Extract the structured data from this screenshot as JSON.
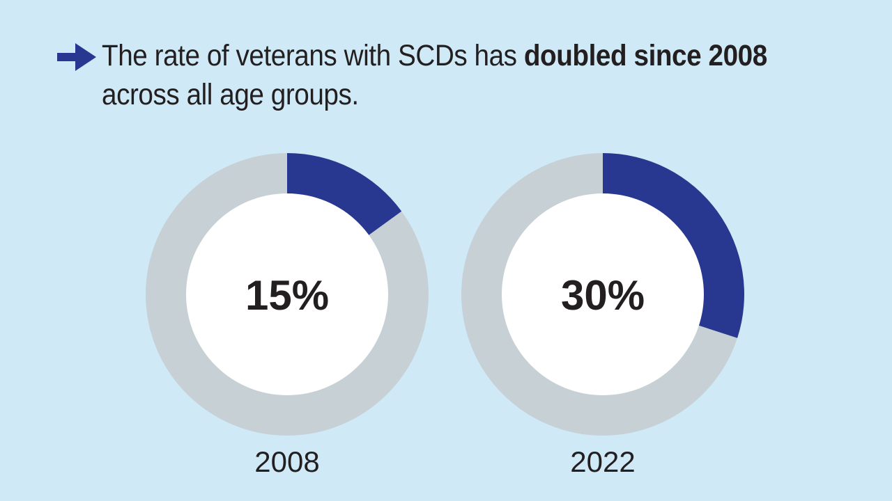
{
  "headline": {
    "text_before": "The rate of veterans with SCDs has ",
    "text_bold": "doubled since 2008",
    "text_after": " across all age groups."
  },
  "colors": {
    "background": "#cfeaf6",
    "filled": "#283891",
    "remainder": "#c7d0d5",
    "center": "#ffffff",
    "text": "#231f20"
  },
  "icons": [
    "arrow-right-icon"
  ],
  "chart_data": [
    {
      "type": "pie",
      "variant": "donut",
      "category": "2008",
      "value": 15,
      "unit": "%",
      "center_label": "15%",
      "year_label": "2008"
    },
    {
      "type": "pie",
      "variant": "donut",
      "category": "2022",
      "value": 30,
      "unit": "%",
      "center_label": "30%",
      "year_label": "2022"
    }
  ]
}
